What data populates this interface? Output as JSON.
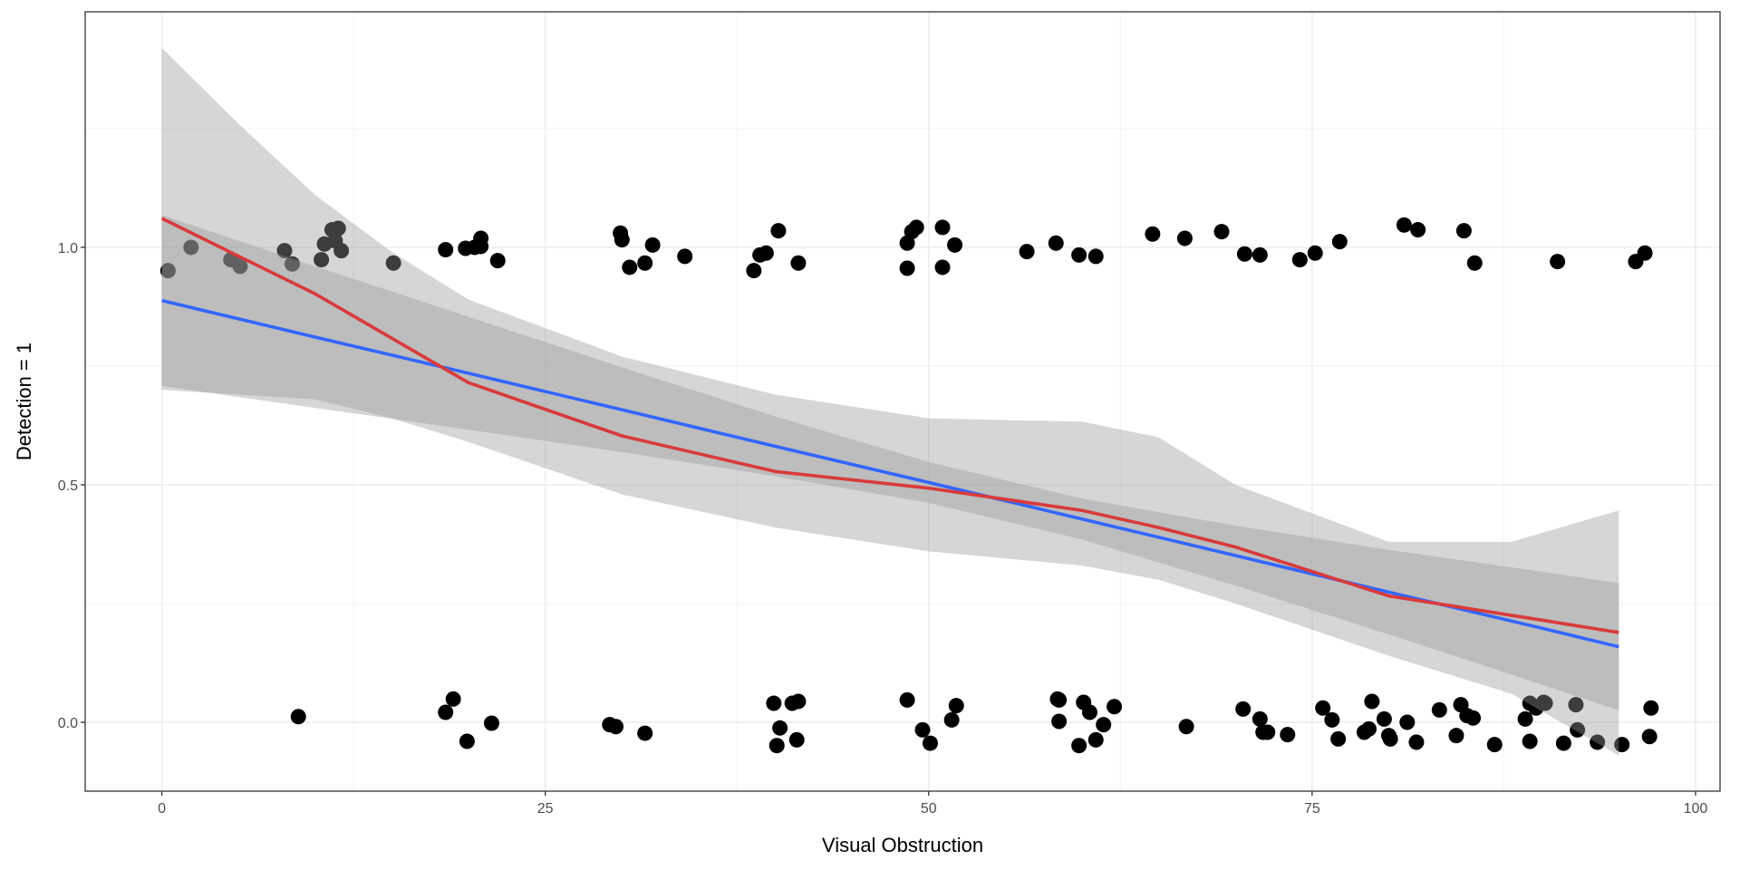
{
  "chart_data": {
    "type": "scatter",
    "title": "",
    "xlabel": "Visual Obstruction",
    "ylabel": "Detection = 1",
    "xlim": [
      -5,
      101.6
    ],
    "ylim": [
      -0.145,
      1.496
    ],
    "x_ticks": [
      "0",
      "25",
      "50",
      "75",
      "100"
    ],
    "x_tick_values": [
      0,
      25,
      50,
      75,
      100
    ],
    "y_ticks": [
      "0.0",
      "0.5",
      "1.0"
    ],
    "y_tick_values": [
      0,
      0.5,
      1.0
    ],
    "grid": true,
    "points": {
      "color": "#000000",
      "x": [
        0.4,
        1.9,
        4.5,
        5.1,
        8.0,
        8.5,
        10.4,
        10.6,
        11.1,
        11.5,
        11.3,
        11.7,
        15.1,
        18.5,
        19.8,
        20.4,
        20.8,
        20.8,
        21.9,
        29.9,
        30.0,
        30.5,
        31.5,
        32.0,
        34.1,
        38.6,
        39.0,
        39.4,
        40.2,
        41.5,
        48.6,
        48.6,
        48.9,
        49.2,
        50.9,
        50.9,
        51.7,
        56.4,
        58.3,
        59.8,
        60.9,
        64.6,
        66.7,
        69.1,
        70.6,
        71.6,
        74.2,
        75.2,
        76.8,
        81.0,
        81.9,
        84.9,
        85.6,
        91.0,
        96.1,
        96.7,
        8.9,
        18.5,
        19.0,
        19.9,
        21.5,
        29.2,
        29.6,
        31.5,
        39.9,
        40.1,
        40.3,
        41.1,
        41.4,
        41.5,
        48.6,
        49.6,
        50.1,
        51.5,
        51.8,
        58.4,
        58.5,
        58.5,
        59.8,
        60.1,
        60.5,
        60.9,
        61.4,
        62.1,
        66.8,
        70.5,
        71.6,
        71.8,
        72.1,
        73.4,
        75.7,
        76.3,
        76.7,
        78.4,
        78.7,
        78.9,
        79.7,
        80.0,
        80.1,
        81.2,
        81.8,
        83.3,
        84.4,
        84.7,
        85.1,
        85.5,
        86.9,
        88.9,
        89.2,
        89.2,
        89.6,
        90.1,
        90.2,
        91.4,
        92.2,
        92.3,
        93.6,
        95.2,
        97.1,
        97.0
      ],
      "y": [
        0.951,
        1.0,
        0.974,
        0.96,
        0.993,
        0.965,
        0.974,
        1.007,
        1.037,
        1.04,
        1.014,
        0.993,
        0.967,
        0.995,
        0.998,
        1.0,
        1.019,
        1.002,
        0.972,
        1.03,
        1.016,
        0.958,
        0.967,
        1.005,
        0.981,
        0.951,
        0.984,
        0.988,
        1.035,
        0.967,
        0.956,
        1.009,
        1.033,
        1.042,
        0.958,
        1.042,
        1.005,
        0.991,
        1.009,
        0.984,
        0.981,
        1.028,
        1.019,
        1.033,
        0.986,
        0.984,
        0.974,
        0.988,
        1.012,
        1.047,
        1.037,
        1.035,
        0.967,
        0.97,
        0.97,
        0.988,
        0.012,
        0.021,
        0.049,
        -0.04,
        -0.002,
        -0.005,
        -0.009,
        -0.023,
        0.04,
        -0.049,
        -0.012,
        0.04,
        -0.037,
        0.044,
        0.047,
        -0.016,
        -0.044,
        0.005,
        0.035,
        0.049,
        0.047,
        0.002,
        -0.049,
        0.042,
        0.021,
        -0.037,
        -0.005,
        0.033,
        -0.009,
        0.028,
        0.007,
        -0.021,
        -0.021,
        -0.026,
        0.03,
        0.005,
        -0.035,
        -0.021,
        -0.014,
        0.044,
        0.007,
        -0.028,
        -0.035,
        0.0,
        -0.042,
        0.026,
        -0.028,
        0.037,
        0.014,
        0.009,
        -0.047,
        0.007,
        0.04,
        -0.04,
        0.03,
        0.042,
        0.04,
        -0.044,
        0.037,
        -0.016,
        -0.042,
        -0.047,
        0.03,
        -0.03
      ]
    },
    "series": [
      {
        "type": "line",
        "color": "#3366FF",
        "x": [
          0,
          10,
          20,
          30,
          40,
          50,
          60,
          70,
          80,
          90,
          95
        ],
        "y": [
          0.888,
          0.811,
          0.735,
          0.658,
          0.581,
          0.505,
          0.428,
          0.351,
          0.274,
          0.198,
          0.159
        ],
        "ci_upper": [
          1.068,
          0.96,
          0.854,
          0.747,
          0.644,
          0.548,
          0.471,
          0.414,
          0.363,
          0.317,
          0.293
        ],
        "ci_lower": [
          0.708,
          0.662,
          0.616,
          0.569,
          0.518,
          0.462,
          0.385,
          0.288,
          0.185,
          0.079,
          0.025
        ]
      },
      {
        "type": "line",
        "color": "#D93A3A",
        "x": [
          0,
          10,
          20,
          30,
          40,
          50,
          60,
          65,
          70,
          80,
          90,
          95
        ],
        "y": [
          1.061,
          0.902,
          0.715,
          0.603,
          0.528,
          0.493,
          0.446,
          0.41,
          0.369,
          0.266,
          0.215,
          0.189
        ],
        "ci_x": [
          0,
          5,
          10,
          15,
          20,
          30,
          40,
          50,
          60,
          65,
          70,
          80,
          88,
          95
        ],
        "ci_upper": [
          1.42,
          1.26,
          1.11,
          0.99,
          0.89,
          0.77,
          0.69,
          0.64,
          0.633,
          0.6,
          0.5,
          0.38,
          0.38,
          0.446
        ],
        "ci_lower": [
          0.7,
          0.69,
          0.68,
          0.64,
          0.59,
          0.48,
          0.41,
          0.36,
          0.33,
          0.3,
          0.25,
          0.14,
          0.06,
          -0.07
        ]
      }
    ],
    "ci_fill": "#999999"
  }
}
